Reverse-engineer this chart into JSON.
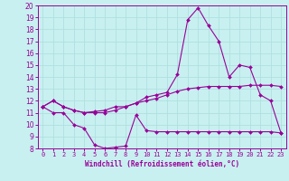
{
  "xlabel": "Windchill (Refroidissement éolien,°C)",
  "bg_color": "#c8f0f0",
  "line_color": "#990099",
  "grid_color": "#b0e0e0",
  "xlim": [
    -0.5,
    23.5
  ],
  "ylim": [
    8,
    20
  ],
  "xticks": [
    0,
    1,
    2,
    3,
    4,
    5,
    6,
    7,
    8,
    9,
    10,
    11,
    12,
    13,
    14,
    15,
    16,
    17,
    18,
    19,
    20,
    21,
    22,
    23
  ],
  "yticks": [
    8,
    9,
    10,
    11,
    12,
    13,
    14,
    15,
    16,
    17,
    18,
    19,
    20
  ],
  "x": [
    0,
    1,
    2,
    3,
    4,
    5,
    6,
    7,
    8,
    9,
    10,
    11,
    12,
    13,
    14,
    15,
    16,
    17,
    18,
    19,
    20,
    21,
    22,
    23
  ],
  "line1": [
    11.5,
    11.0,
    11.0,
    10.0,
    9.7,
    8.3,
    8.0,
    8.1,
    8.2,
    10.8,
    9.5,
    9.4,
    9.4,
    9.4,
    9.4,
    9.4,
    9.4,
    9.4,
    9.4,
    9.4,
    9.4,
    9.4,
    9.4,
    9.3
  ],
  "line2": [
    11.5,
    12.0,
    11.5,
    11.2,
    11.0,
    11.0,
    11.0,
    11.2,
    11.5,
    11.8,
    12.0,
    12.2,
    12.5,
    12.8,
    13.0,
    13.1,
    13.2,
    13.2,
    13.2,
    13.2,
    13.3,
    13.3,
    13.3,
    13.2
  ],
  "line3": [
    11.5,
    12.0,
    11.5,
    11.2,
    11.0,
    11.1,
    11.2,
    11.5,
    11.5,
    11.8,
    12.3,
    12.5,
    12.7,
    14.2,
    18.8,
    19.8,
    18.3,
    17.0,
    14.0,
    15.0,
    14.8,
    12.5,
    12.0,
    9.3
  ],
  "xlabel_fontsize": 5.5,
  "tick_fontsize": 5.5
}
